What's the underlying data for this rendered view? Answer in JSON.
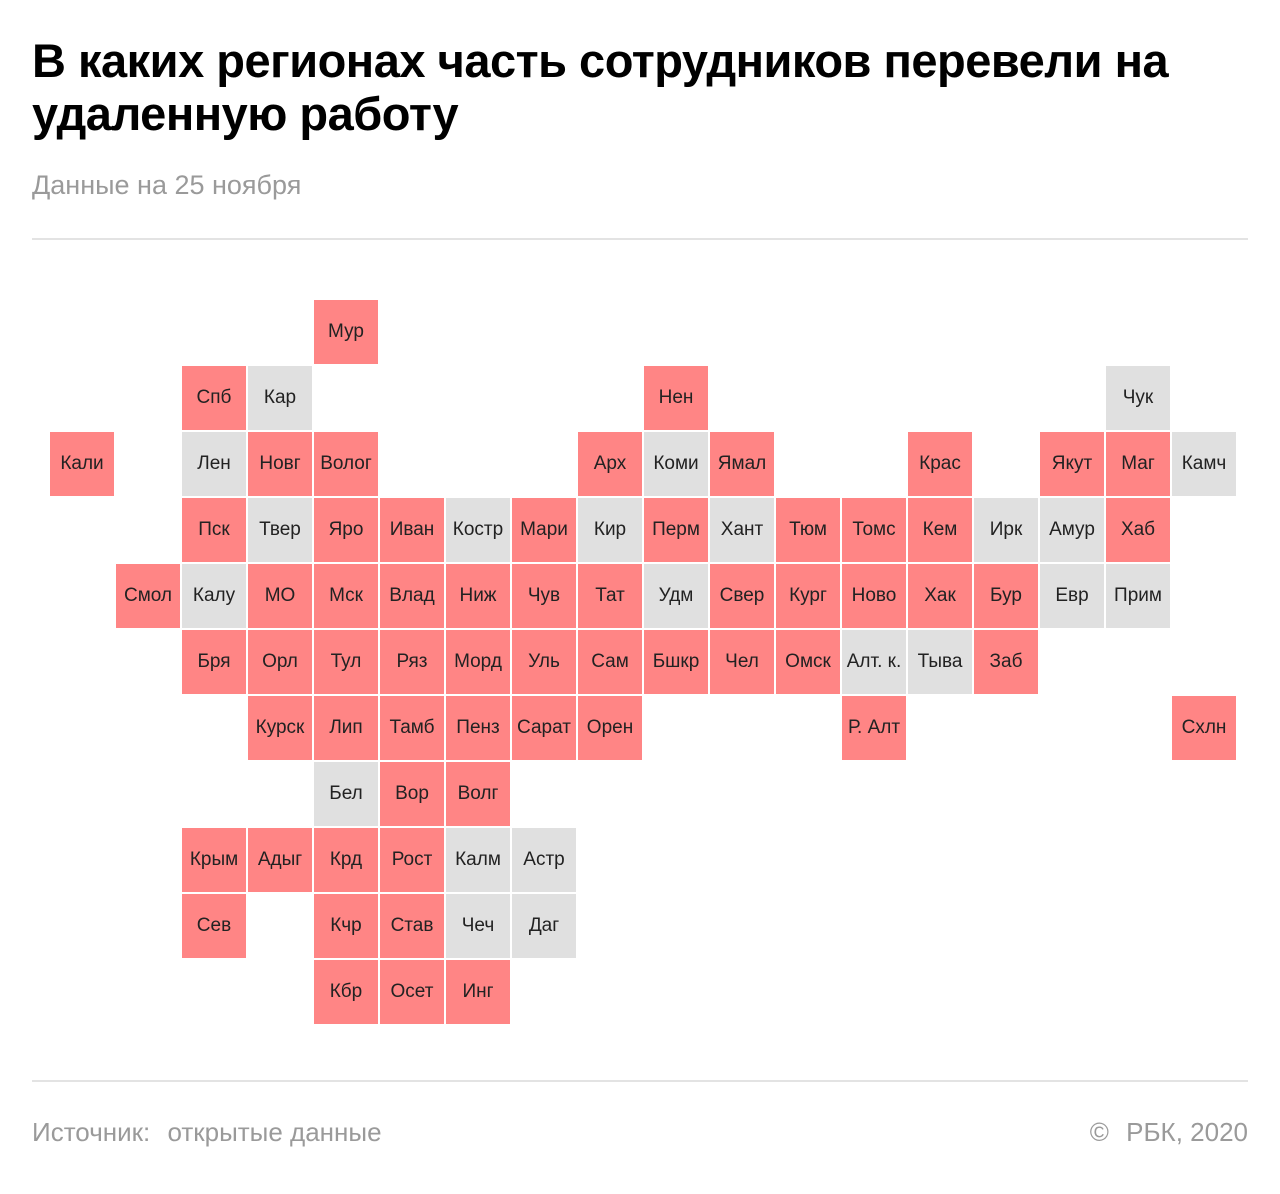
{
  "title": "В каких регионах часть сотрудников перевели на удаленную работу",
  "subtitle": "Данные на 25 ноября",
  "source": {
    "label": "Источник:",
    "text": "открытые данные"
  },
  "copyright": {
    "symbol": "©",
    "text": "РБК, 2020"
  },
  "colors": {
    "remote": "#ff8585",
    "other": "#e0e0e0"
  },
  "regions": [
    {
      "label": "Мур",
      "row": 0,
      "col": 4,
      "remote": true
    },
    {
      "label": "Спб",
      "row": 1,
      "col": 2,
      "remote": true
    },
    {
      "label": "Кар",
      "row": 1,
      "col": 3,
      "remote": false
    },
    {
      "label": "Нен",
      "row": 1,
      "col": 9,
      "remote": true
    },
    {
      "label": "Чук",
      "row": 1,
      "col": 16,
      "remote": false
    },
    {
      "label": "Кали",
      "row": 2,
      "col": 0,
      "remote": true
    },
    {
      "label": "Лен",
      "row": 2,
      "col": 2,
      "remote": false
    },
    {
      "label": "Новг",
      "row": 2,
      "col": 3,
      "remote": true
    },
    {
      "label": "Волог",
      "row": 2,
      "col": 4,
      "remote": true
    },
    {
      "label": "Арх",
      "row": 2,
      "col": 8,
      "remote": true
    },
    {
      "label": "Коми",
      "row": 2,
      "col": 9,
      "remote": false
    },
    {
      "label": "Ямал",
      "row": 2,
      "col": 10,
      "remote": true
    },
    {
      "label": "Крас",
      "row": 2,
      "col": 13,
      "remote": true
    },
    {
      "label": "Якут",
      "row": 2,
      "col": 15,
      "remote": true
    },
    {
      "label": "Маг",
      "row": 2,
      "col": 16,
      "remote": true
    },
    {
      "label": "Камч",
      "row": 2,
      "col": 17,
      "remote": false
    },
    {
      "label": "Пск",
      "row": 3,
      "col": 2,
      "remote": true
    },
    {
      "label": "Твер",
      "row": 3,
      "col": 3,
      "remote": false
    },
    {
      "label": "Яро",
      "row": 3,
      "col": 4,
      "remote": true
    },
    {
      "label": "Иван",
      "row": 3,
      "col": 5,
      "remote": true
    },
    {
      "label": "Костр",
      "row": 3,
      "col": 6,
      "remote": false
    },
    {
      "label": "Мари",
      "row": 3,
      "col": 7,
      "remote": true
    },
    {
      "label": "Кир",
      "row": 3,
      "col": 8,
      "remote": false
    },
    {
      "label": "Перм",
      "row": 3,
      "col": 9,
      "remote": true
    },
    {
      "label": "Хант",
      "row": 3,
      "col": 10,
      "remote": false
    },
    {
      "label": "Тюм",
      "row": 3,
      "col": 11,
      "remote": true
    },
    {
      "label": "Томс",
      "row": 3,
      "col": 12,
      "remote": true
    },
    {
      "label": "Кем",
      "row": 3,
      "col": 13,
      "remote": true
    },
    {
      "label": "Ирк",
      "row": 3,
      "col": 14,
      "remote": false
    },
    {
      "label": "Амур",
      "row": 3,
      "col": 15,
      "remote": false
    },
    {
      "label": "Хаб",
      "row": 3,
      "col": 16,
      "remote": true
    },
    {
      "label": "Смол",
      "row": 4,
      "col": 1,
      "remote": true
    },
    {
      "label": "Калу",
      "row": 4,
      "col": 2,
      "remote": false
    },
    {
      "label": "МО",
      "row": 4,
      "col": 3,
      "remote": true
    },
    {
      "label": "Мск",
      "row": 4,
      "col": 4,
      "remote": true
    },
    {
      "label": "Влад",
      "row": 4,
      "col": 5,
      "remote": true
    },
    {
      "label": "Ниж",
      "row": 4,
      "col": 6,
      "remote": true
    },
    {
      "label": "Чув",
      "row": 4,
      "col": 7,
      "remote": true
    },
    {
      "label": "Тат",
      "row": 4,
      "col": 8,
      "remote": true
    },
    {
      "label": "Удм",
      "row": 4,
      "col": 9,
      "remote": false
    },
    {
      "label": "Свер",
      "row": 4,
      "col": 10,
      "remote": true
    },
    {
      "label": "Кург",
      "row": 4,
      "col": 11,
      "remote": true
    },
    {
      "label": "Ново",
      "row": 4,
      "col": 12,
      "remote": true
    },
    {
      "label": "Хак",
      "row": 4,
      "col": 13,
      "remote": true
    },
    {
      "label": "Бур",
      "row": 4,
      "col": 14,
      "remote": true
    },
    {
      "label": "Евр",
      "row": 4,
      "col": 15,
      "remote": false
    },
    {
      "label": "Прим",
      "row": 4,
      "col": 16,
      "remote": false
    },
    {
      "label": "Бря",
      "row": 5,
      "col": 2,
      "remote": true
    },
    {
      "label": "Орл",
      "row": 5,
      "col": 3,
      "remote": true
    },
    {
      "label": "Тул",
      "row": 5,
      "col": 4,
      "remote": true
    },
    {
      "label": "Ряз",
      "row": 5,
      "col": 5,
      "remote": true
    },
    {
      "label": "Морд",
      "row": 5,
      "col": 6,
      "remote": true
    },
    {
      "label": "Уль",
      "row": 5,
      "col": 7,
      "remote": true
    },
    {
      "label": "Сам",
      "row": 5,
      "col": 8,
      "remote": true
    },
    {
      "label": "Бшкр",
      "row": 5,
      "col": 9,
      "remote": true
    },
    {
      "label": "Чел",
      "row": 5,
      "col": 10,
      "remote": true
    },
    {
      "label": "Омск",
      "row": 5,
      "col": 11,
      "remote": true
    },
    {
      "label": "Алт. к.",
      "row": 5,
      "col": 12,
      "remote": false
    },
    {
      "label": "Тыва",
      "row": 5,
      "col": 13,
      "remote": false
    },
    {
      "label": "Заб",
      "row": 5,
      "col": 14,
      "remote": true
    },
    {
      "label": "Курск",
      "row": 6,
      "col": 3,
      "remote": true
    },
    {
      "label": "Лип",
      "row": 6,
      "col": 4,
      "remote": true
    },
    {
      "label": "Тамб",
      "row": 6,
      "col": 5,
      "remote": true
    },
    {
      "label": "Пенз",
      "row": 6,
      "col": 6,
      "remote": true
    },
    {
      "label": "Сарат",
      "row": 6,
      "col": 7,
      "remote": true
    },
    {
      "label": "Орен",
      "row": 6,
      "col": 8,
      "remote": true
    },
    {
      "label": "Р. Алт",
      "row": 6,
      "col": 12,
      "remote": true
    },
    {
      "label": "Схлн",
      "row": 6,
      "col": 17,
      "remote": true
    },
    {
      "label": "Бел",
      "row": 7,
      "col": 4,
      "remote": false
    },
    {
      "label": "Вор",
      "row": 7,
      "col": 5,
      "remote": true
    },
    {
      "label": "Волг",
      "row": 7,
      "col": 6,
      "remote": true
    },
    {
      "label": "Крым",
      "row": 8,
      "col": 2,
      "remote": true
    },
    {
      "label": "Адыг",
      "row": 8,
      "col": 3,
      "remote": true
    },
    {
      "label": "Крд",
      "row": 8,
      "col": 4,
      "remote": true
    },
    {
      "label": "Рост",
      "row": 8,
      "col": 5,
      "remote": true
    },
    {
      "label": "Калм",
      "row": 8,
      "col": 6,
      "remote": false
    },
    {
      "label": "Астр",
      "row": 8,
      "col": 7,
      "remote": false
    },
    {
      "label": "Сев",
      "row": 9,
      "col": 2,
      "remote": true
    },
    {
      "label": "Кчр",
      "row": 9,
      "col": 4,
      "remote": true
    },
    {
      "label": "Став",
      "row": 9,
      "col": 5,
      "remote": true
    },
    {
      "label": "Чеч",
      "row": 9,
      "col": 6,
      "remote": false
    },
    {
      "label": "Даг",
      "row": 9,
      "col": 7,
      "remote": false
    },
    {
      "label": "Кбр",
      "row": 10,
      "col": 4,
      "remote": true
    },
    {
      "label": "Осет",
      "row": 10,
      "col": 5,
      "remote": true
    },
    {
      "label": "Инг",
      "row": 10,
      "col": 6,
      "remote": true
    }
  ]
}
